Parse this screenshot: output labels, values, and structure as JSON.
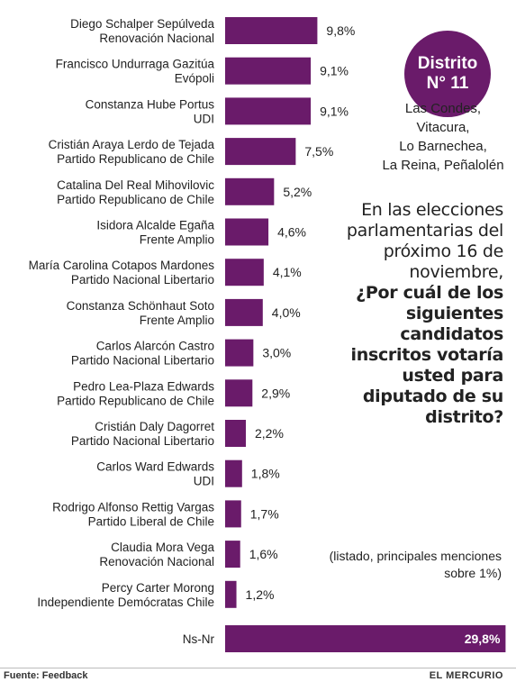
{
  "chart_data": {
    "type": "bar",
    "orientation": "horizontal",
    "categories": [
      {
        "name": "Diego Schalper Sepúlveda",
        "party": "Renovación Nacional"
      },
      {
        "name": "Francisco Undurraga Gazitúa",
        "party": "Evópoli"
      },
      {
        "name": "Constanza Hube Portus",
        "party": "UDI"
      },
      {
        "name": "Cristián Araya Lerdo de Tejada",
        "party": "Partido Republicano de Chile"
      },
      {
        "name": "Catalina Del Real Mihovilovic",
        "party": "Partido Republicano de Chile"
      },
      {
        "name": "Isidora Alcalde Egaña",
        "party": "Frente Amplio"
      },
      {
        "name": "María Carolina Cotapos Mardones",
        "party": "Partido Nacional Libertario"
      },
      {
        "name": "Constanza Schönhaut Soto",
        "party": "Frente Amplio"
      },
      {
        "name": "Carlos Alarcón Castro",
        "party": "Partido Nacional Libertario"
      },
      {
        "name": "Pedro Lea-Plaza Edwards",
        "party": "Partido Republicano de Chile"
      },
      {
        "name": "Cristián Daly Dagorret",
        "party": "Partido Nacional Libertario"
      },
      {
        "name": "Carlos Ward Edwards",
        "party": "UDI"
      },
      {
        "name": "Rodrigo Alfonso Rettig Vargas",
        "party": "Partido Liberal de Chile"
      },
      {
        "name": "Claudia Mora Vega",
        "party": "Renovación Nacional"
      },
      {
        "name": "Percy Carter Morong",
        "party": "Independiente Demócratas Chile"
      },
      {
        "name": "Ns-Nr",
        "party": ""
      }
    ],
    "values": [
      9.8,
      9.1,
      9.1,
      7.5,
      5.2,
      4.6,
      4.1,
      4.0,
      3.0,
      2.9,
      2.2,
      1.8,
      1.7,
      1.6,
      1.2,
      29.8
    ],
    "value_labels": [
      "9,8%",
      "9,1%",
      "9,1%",
      "7,5%",
      "5,2%",
      "4,6%",
      "4,1%",
      "4,0%",
      "3,0%",
      "2,9%",
      "2,2%",
      "1,8%",
      "1,7%",
      "1,6%",
      "1,2%",
      "29,8%"
    ],
    "bar_color": "#6a1b6a",
    "title": "",
    "xlabel": "",
    "ylabel": ""
  },
  "badge": {
    "line1": "Distrito",
    "line2": "N° 11"
  },
  "communes": [
    "Las Condes,",
    "Vitacura,",
    "Lo Barnechea,",
    "La Reina, Peñalolén"
  ],
  "question": {
    "intro": "En las elecciones parlamentarias del próximo 16 de noviembre,",
    "bold": "¿Por cuál de los siguientes candidatos inscritos votaría usted para diputado de su distrito?"
  },
  "note": "(listado, principales menciones sobre 1%)",
  "footer": {
    "source": "Fuente: Feedback",
    "brand": "EL MERCURIO"
  },
  "colors": {
    "accent": "#6a1b6a",
    "text": "#222222",
    "bar_label_inverse": "#ffffff"
  }
}
